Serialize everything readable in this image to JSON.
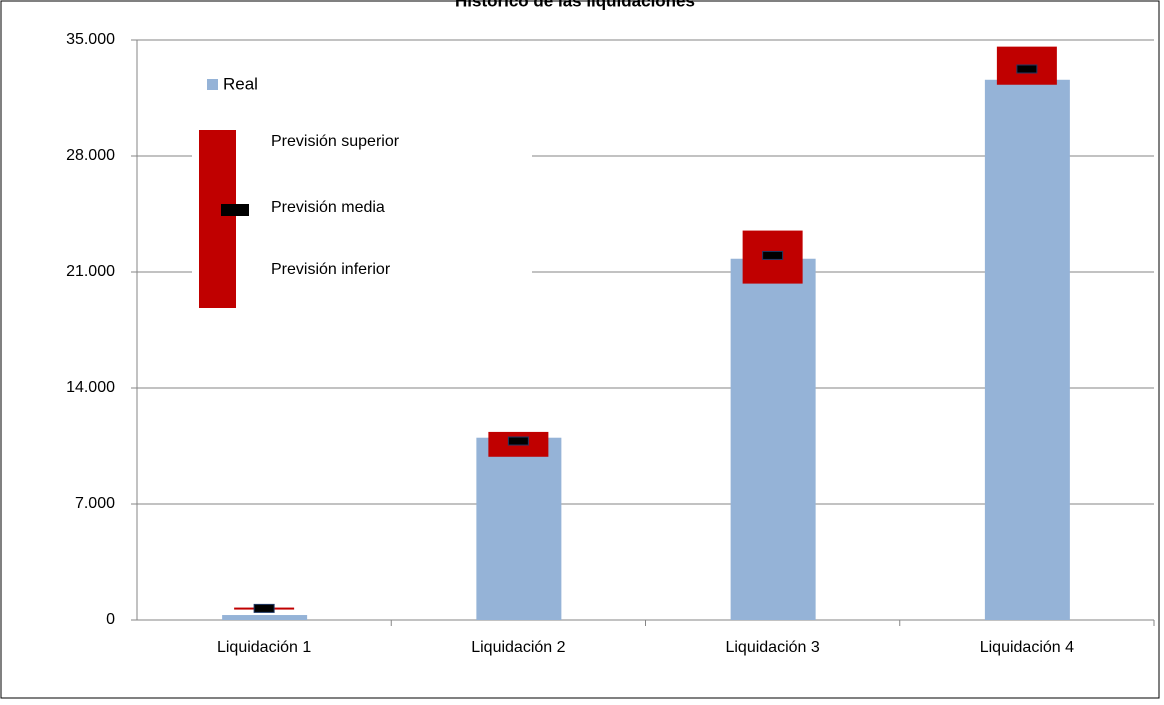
{
  "chart_data": {
    "type": "bar-forecast",
    "title": "Histórico de las liquidaciones",
    "categories": [
      "Liquidación 1",
      "Liquidación 2",
      "Liquidación 3",
      "Liquidación 4"
    ],
    "series": [
      {
        "name": "Real",
        "color": "#95b3d7",
        "values": [
          300,
          11000,
          21800,
          32600
        ]
      },
      {
        "name": "Previsión superior",
        "color": "#c00000",
        "values": [
          750,
          11350,
          23500,
          34600
        ]
      },
      {
        "name": "Previsión media",
        "color": "#000000",
        "values": [
          700,
          10800,
          22000,
          33250
        ]
      },
      {
        "name": "Previsión inferior",
        "color": "#c00000",
        "values": [
          650,
          9850,
          20300,
          32300
        ]
      }
    ],
    "ylim": [
      0,
      35000
    ],
    "yticks": [
      0,
      {
        "value": 7000,
        "label": "7.000"
      },
      {
        "value": 14000,
        "label": "14.000"
      },
      {
        "value": 21000,
        "label": "21.000"
      },
      {
        "value": 28000,
        "label": "28.000"
      },
      {
        "value": 35000,
        "label": "35.000"
      }
    ],
    "grid": true
  }
}
